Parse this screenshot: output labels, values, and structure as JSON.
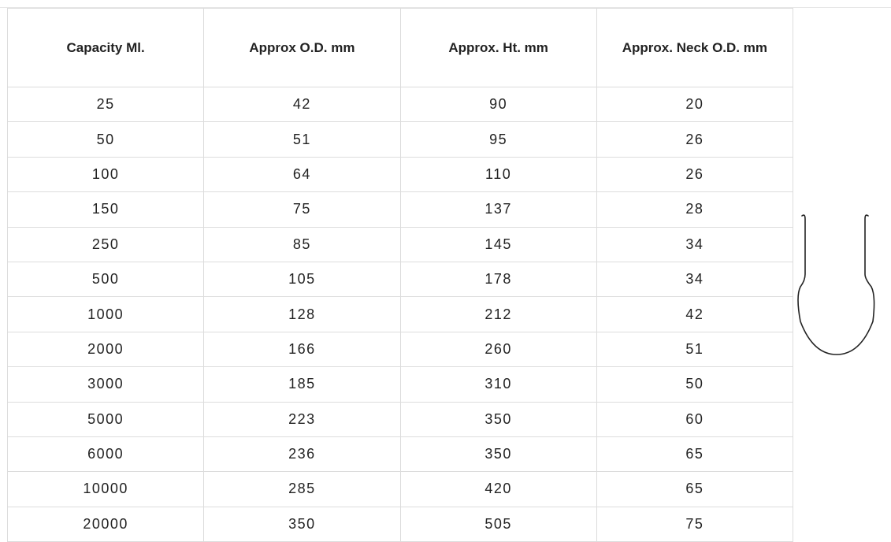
{
  "table": {
    "columns": [
      "Capacity Ml.",
      "Approx O.D. mm",
      "Approx. Ht. mm",
      "Approx. Neck O.D. mm"
    ],
    "rows": [
      [
        "25",
        "42",
        "90",
        "20"
      ],
      [
        "50",
        "51",
        "95",
        "26"
      ],
      [
        "100",
        "64",
        "110",
        "26"
      ],
      [
        "150",
        "75",
        "137",
        "28"
      ],
      [
        "250",
        "85",
        "145",
        "34"
      ],
      [
        "500",
        "105",
        "178",
        "34"
      ],
      [
        "1000",
        "128",
        "212",
        "42"
      ],
      [
        "2000",
        "166",
        "260",
        "51"
      ],
      [
        "3000",
        "185",
        "310",
        "50"
      ],
      [
        "5000",
        "223",
        "350",
        "60"
      ],
      [
        "6000",
        "236",
        "350",
        "65"
      ],
      [
        "10000",
        "285",
        "420",
        "65"
      ],
      [
        "20000",
        "350",
        "505",
        "75"
      ]
    ]
  }
}
